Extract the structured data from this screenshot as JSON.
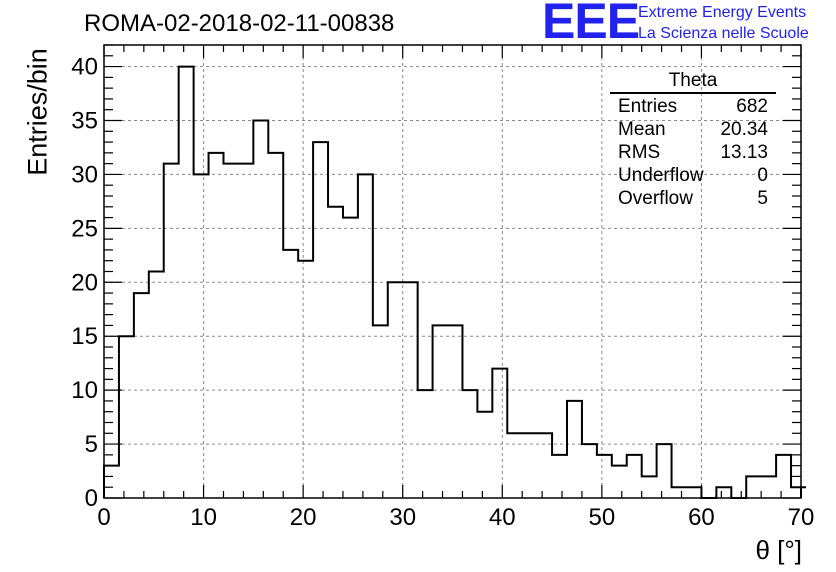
{
  "title": "ROMA-02-2018-02-11-00838",
  "logo": {
    "mark": "EEE",
    "line1": "Extreme Energy Events",
    "line2": "La Scienza nelle Scuole",
    "color": "#2222ee"
  },
  "stats": {
    "title": "Theta",
    "rows": [
      {
        "label": "Entries",
        "value": "682"
      },
      {
        "label": "Mean",
        "value": "20.34"
      },
      {
        "label": "RMS",
        "value": "13.13"
      },
      {
        "label": "Underflow",
        "value": "0"
      },
      {
        "label": "Overflow",
        "value": "5"
      }
    ]
  },
  "chart_data": {
    "type": "bar",
    "title": "ROMA-02-2018-02-11-00838",
    "xlabel": "θ [°]",
    "ylabel": "Entries/bin",
    "xlim": [
      0,
      70
    ],
    "ylim": [
      0,
      42
    ],
    "bin_width": 1.5,
    "bin_start": 0,
    "values": [
      3,
      15,
      19,
      21,
      31,
      40,
      30,
      32,
      31,
      31,
      35,
      32,
      23,
      22,
      33,
      27,
      26,
      30,
      16,
      20,
      20,
      10,
      16,
      16,
      10,
      8,
      12,
      6,
      6,
      6,
      4,
      9,
      5,
      4,
      3,
      4,
      2,
      5,
      1,
      1,
      0,
      1,
      0,
      2,
      2,
      4,
      1,
      1
    ],
    "x_ticks": [
      0,
      10,
      20,
      30,
      40,
      50,
      60,
      70
    ],
    "y_ticks": [
      0,
      5,
      10,
      15,
      20,
      25,
      30,
      35,
      40
    ],
    "grid": true,
    "line_color": "#000000"
  }
}
